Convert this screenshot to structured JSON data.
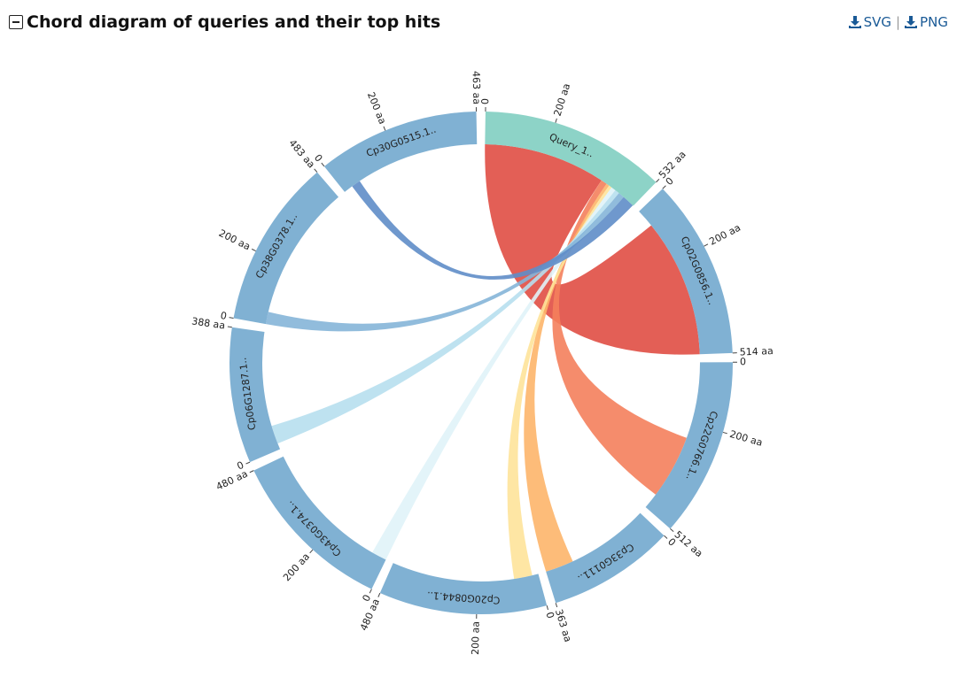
{
  "header": {
    "title": "Chord diagram of queries and their top hits",
    "buttons": [
      "SVG",
      "PNG"
    ],
    "separator": "|"
  },
  "diagram": {
    "segments": [
      {
        "label": "Query_1..",
        "length": 532,
        "color": "#8dd3c7",
        "ticks": [
          {
            "value": 0,
            "label": "0"
          },
          {
            "value": 200,
            "label": "200 aa"
          },
          {
            "value": 532,
            "label": "532 aa"
          }
        ]
      },
      {
        "label": "Cp02G0856.1..",
        "length": 514,
        "color": "#80b1d3",
        "ticks": [
          {
            "value": 0,
            "label": "0"
          },
          {
            "value": 200,
            "label": "200 aa"
          },
          {
            "value": 514,
            "label": "514 aa"
          }
        ]
      },
      {
        "label": "Cp22G0766.1..",
        "length": 512,
        "color": "#80b1d3",
        "ticks": [
          {
            "value": 0,
            "label": "0"
          },
          {
            "value": 200,
            "label": "200 aa"
          },
          {
            "value": 512,
            "label": "512 aa"
          }
        ]
      },
      {
        "label": "Cp33G0111..",
        "length": 363,
        "color": "#80b1d3",
        "ticks": [
          {
            "value": 0,
            "label": "0"
          },
          {
            "value": 363,
            "label": "363 aa"
          }
        ]
      },
      {
        "label": "Cp20G0844.1..",
        "length": 480,
        "color": "#80b1d3",
        "ticks": [
          {
            "value": 0,
            "label": "0"
          },
          {
            "value": 200,
            "label": "200 aa"
          },
          {
            "value": 480,
            "label": "480 aa"
          }
        ]
      },
      {
        "label": "Cp43G0374.1..",
        "length": 480,
        "color": "#80b1d3",
        "ticks": [
          {
            "value": 0,
            "label": "0"
          },
          {
            "value": 200,
            "label": "200 aa"
          },
          {
            "value": 480,
            "label": "480 aa"
          }
        ]
      },
      {
        "label": "Cp06G1287.1..",
        "length": 388,
        "color": "#80b1d3",
        "ticks": [
          {
            "value": 0,
            "label": "0"
          },
          {
            "value": 388,
            "label": "388 aa"
          }
        ]
      },
      {
        "label": "Cp38G0378.1..",
        "length": 483,
        "color": "#80b1d3",
        "ticks": [
          {
            "value": 0,
            "label": "0"
          },
          {
            "value": 200,
            "label": "200 aa"
          },
          {
            "value": 483,
            "label": "483 aa"
          }
        ]
      },
      {
        "label": "Cp30G0515.1..",
        "length": 463,
        "color": "#80b1d3",
        "ticks": [
          {
            "value": 0,
            "label": "0"
          },
          {
            "value": 200,
            "label": "200 aa"
          },
          {
            "value": 463,
            "label": "463 aa"
          }
        ]
      }
    ],
    "chords": [
      {
        "source": 0,
        "target": 1,
        "source_range": [
          0,
          400
        ],
        "target_range": [
          60,
          514
        ],
        "color": "#e04e44"
      },
      {
        "source": 0,
        "target": 2,
        "source_range": [
          400,
          420
        ],
        "target_range": [
          250,
          460
        ],
        "color": "#f4805c"
      },
      {
        "source": 0,
        "target": 3,
        "source_range": [
          420,
          430
        ],
        "target_range": [
          270,
          363
        ],
        "color": "#fdb56a"
      },
      {
        "source": 0,
        "target": 4,
        "source_range": [
          430,
          440
        ],
        "target_range": [
          20,
          80
        ],
        "color": "#fee39a"
      },
      {
        "source": 0,
        "target": 5,
        "source_range": [
          440,
          455
        ],
        "target_range": [
          0,
          50
        ],
        "color": "#e0f3f8"
      },
      {
        "source": 0,
        "target": 6,
        "source_range": [
          455,
          470
        ],
        "target_range": [
          20,
          80
        ],
        "color": "#b7dfee"
      },
      {
        "source": 0,
        "target": 7,
        "source_range": [
          470,
          490
        ],
        "target_range": [
          0,
          40
        ],
        "color": "#85b5d8"
      },
      {
        "source": 0,
        "target": 8,
        "source_range": [
          490,
          530
        ],
        "target_range": [
          30,
          60
        ],
        "color": "#5f8dc8"
      }
    ]
  }
}
